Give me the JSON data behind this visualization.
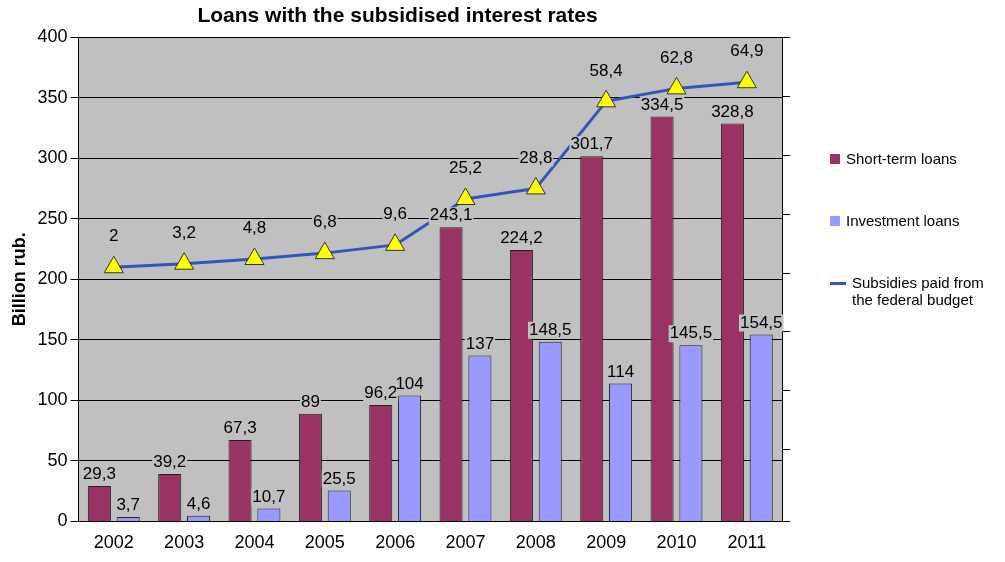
{
  "chart_data": {
    "type": "bar",
    "title": "Loans with the subsidised interest rates",
    "ylabel": "Billion rub.",
    "categories": [
      "2002",
      "2003",
      "2004",
      "2005",
      "2006",
      "2007",
      "2008",
      "2009",
      "2010",
      "2011"
    ],
    "series": [
      {
        "name": "Short-term loans",
        "color": "#993366",
        "values": [
          29.3,
          39.2,
          67.3,
          89,
          96.2,
          243.1,
          224.2,
          301.7,
          334.5,
          328.8
        ],
        "value_labels": [
          "29,3",
          "39,2",
          "67,3",
          "89",
          "96,2",
          "243,1",
          "224,2",
          "301,7",
          "334,5",
          "328,8"
        ]
      },
      {
        "name": "Investment loans",
        "color": "#9999ff",
        "values": [
          3.7,
          4.6,
          10.7,
          25.5,
          104,
          137,
          148.5,
          114,
          145.5,
          154.5
        ],
        "value_labels": [
          "3,7",
          "4,6",
          "10,7",
          "25,5",
          "104",
          "137",
          "148,5",
          "114",
          "145,5",
          "154,5"
        ]
      },
      {
        "name": "Subsidies paid from the federal budget",
        "type": "line",
        "axis": "y2",
        "color": "#3355bb",
        "marker": "triangle",
        "values": [
          2,
          3.2,
          4.8,
          6.8,
          9.6,
          25.2,
          28.8,
          58.4,
          62.8,
          64.9
        ],
        "value_labels": [
          "2",
          "3,2",
          "4,8",
          "6,8",
          "9,6",
          "25,2",
          "28,8",
          "58,4",
          "62,8",
          "64,9"
        ]
      }
    ],
    "ylim": [
      0,
      400
    ],
    "yticks": [
      0,
      50,
      100,
      150,
      200,
      250,
      300,
      350,
      400
    ],
    "y2lim": [
      -84.4,
      80.2
    ],
    "tick_labels": "xy",
    "grid": "y",
    "legend": "right"
  }
}
